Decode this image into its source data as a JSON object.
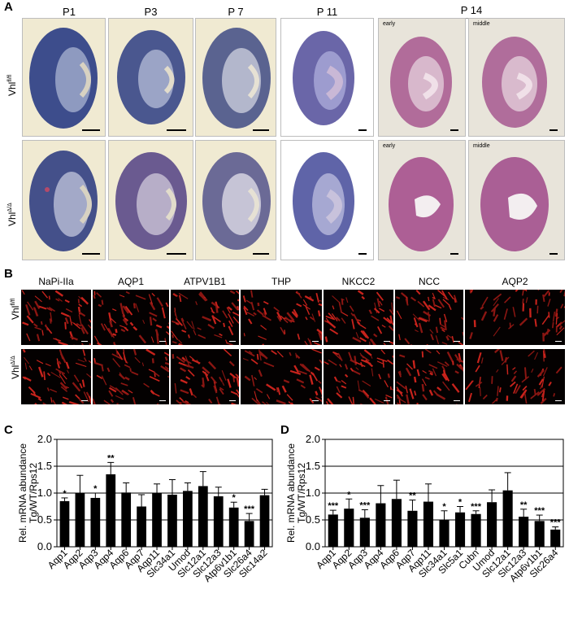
{
  "panel_a": {
    "letter": "A",
    "columns": [
      "P1",
      "P3",
      "P 7",
      "P 11",
      "P 14"
    ],
    "row_labels": [
      {
        "base": "Vhl",
        "sup": "fl/fl"
      },
      {
        "base": "Vhl",
        "sup": "Δ/Δ"
      }
    ],
    "p14_tags_top": [
      "early",
      "middle"
    ],
    "p14_tags_bottom": [
      "early",
      "middle"
    ]
  },
  "panel_b": {
    "letter": "B",
    "stains": [
      "NaPi-IIa",
      "AQP1",
      "ATPV1B1",
      "THP",
      "NKCC2",
      "NCC",
      "AQP2"
    ],
    "row_labels": [
      {
        "base": "Vhl",
        "sup": "fl/fl"
      },
      {
        "base": "Vhl",
        "sup": "Δ/Δ"
      }
    ]
  },
  "panel_c": {
    "letter": "C"
  },
  "panel_d": {
    "letter": "D"
  },
  "chart_data": [
    {
      "type": "bar",
      "panel": "C",
      "ylabel": "Rel. mRNA abundance Tg/WT/Rps12",
      "ylim": [
        0,
        2.0
      ],
      "yticks": [
        "0.0",
        "0.5",
        "1.0",
        "1.5",
        "2.0"
      ],
      "categories": [
        "Aqp1",
        "Aqp2",
        "Aqp3",
        "Aqp4",
        "Aqp6",
        "Aqp7",
        "Aqp11",
        "Slc34a1",
        "Umod",
        "Slc12a1",
        "Slc12a3",
        "Atp6v1b1",
        "Slc26a4",
        "Slc14a2"
      ],
      "values": [
        0.85,
        1.0,
        0.91,
        1.35,
        1.01,
        0.75,
        1.0,
        0.97,
        1.04,
        1.13,
        0.94,
        0.73,
        0.48,
        0.96
      ],
      "errors": [
        0.06,
        0.33,
        0.09,
        0.22,
        0.18,
        0.22,
        0.17,
        0.28,
        0.15,
        0.27,
        0.17,
        0.1,
        0.14,
        0.11
      ],
      "significance": [
        "*",
        "",
        "*",
        "**",
        "",
        "",
        "",
        "",
        "",
        "",
        "",
        "*",
        "***",
        ""
      ],
      "grid": "horizontal lines at 0.5, 1.0, 1.5",
      "bar_color": "#000000"
    },
    {
      "type": "bar",
      "panel": "D",
      "ylabel": "Rel. mRNA abundance Tg/WT/Rps12",
      "ylim": [
        0,
        2.0
      ],
      "yticks": [
        "0.0",
        "0.5",
        "1.0",
        "1.5",
        "2.0"
      ],
      "categories": [
        "Aqp1",
        "Aqp2",
        "Aqp3",
        "Aqp4",
        "Aqp6",
        "Aqp7",
        "Aqp11",
        "Slc34a1",
        "Slc5a1",
        "Cubn",
        "Umod",
        "Slc12a1",
        "Slc12a3",
        "Atp6v1b1",
        "Slc26a4"
      ],
      "values": [
        0.6,
        0.71,
        0.54,
        0.81,
        0.89,
        0.67,
        0.84,
        0.5,
        0.64,
        0.61,
        0.83,
        1.05,
        0.56,
        0.48,
        0.32
      ],
      "errors": [
        0.08,
        0.18,
        0.15,
        0.33,
        0.35,
        0.2,
        0.33,
        0.17,
        0.11,
        0.06,
        0.23,
        0.33,
        0.14,
        0.11,
        0.05
      ],
      "significance": [
        "***",
        "*",
        "***",
        "",
        "",
        "**",
        "",
        "*",
        "*",
        "***",
        "",
        "",
        "**",
        "***",
        "***"
      ],
      "grid": "horizontal lines at 0.5, 1.0, 1.5",
      "bar_color": "#000000"
    }
  ]
}
